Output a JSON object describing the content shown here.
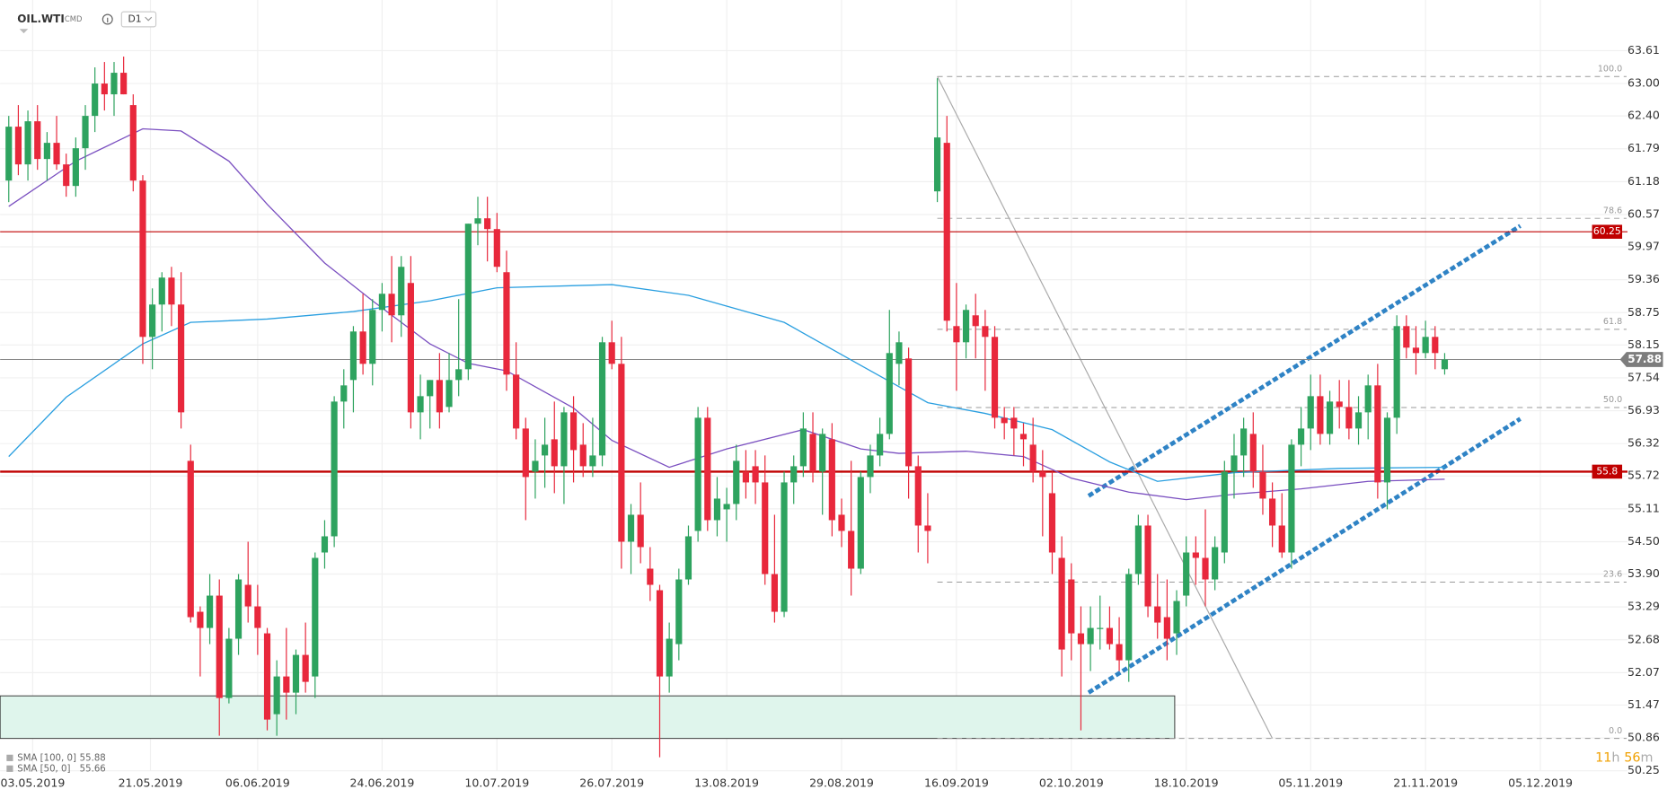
{
  "header": {
    "symbol": "OIL.WTI",
    "market": "CMD",
    "interval": "D1"
  },
  "chart_data": {
    "type": "candlestick",
    "xlim": [
      -0.9,
      169.1
    ],
    "ylim": [
      50.25,
      64.55
    ],
    "xticks": [
      {
        "value": 2.5,
        "label": "03.05.2019"
      },
      {
        "value": 14.8,
        "label": "21.05.2019"
      },
      {
        "value": 26,
        "label": "06.06.2019"
      },
      {
        "value": 39,
        "label": "24.06.2019"
      },
      {
        "value": 51,
        "label": "10.07.2019"
      },
      {
        "value": 63,
        "label": "26.07.2019"
      },
      {
        "value": 75,
        "label": "13.08.2019"
      },
      {
        "value": 87,
        "label": "29.08.2019"
      },
      {
        "value": 99,
        "label": "16.09.2019"
      },
      {
        "value": 111,
        "label": "02.10.2019"
      },
      {
        "value": 123,
        "label": "18.10.2019"
      },
      {
        "value": 136,
        "label": "05.11.2019"
      },
      {
        "value": 148,
        "label": "21.11.2019"
      },
      {
        "value": 160,
        "label": "05.12.2019"
      }
    ],
    "yticks": [
      63.61,
      {
        "value": 63,
        "label": "63.00"
      },
      {
        "value": 62.4,
        "label": "62.40"
      },
      61.79,
      61.18,
      60.57,
      59.97,
      59.36,
      58.75,
      58.15,
      57.54,
      56.93,
      56.32,
      55.72,
      55.11,
      {
        "value": 54.5,
        "label": "54.50"
      },
      {
        "value": 53.9,
        "label": "53.90"
      },
      53.29,
      52.68,
      52.07,
      51.47,
      50.86,
      50.25
    ],
    "grid": true,
    "up_color": "#2ea35f",
    "down_color": "#e8283c",
    "open": [
      61.2,
      62.2,
      61.5,
      62.3,
      61.6,
      61.9,
      61.5,
      61.1,
      61.8,
      62.4,
      63.0,
      62.8,
      63.2,
      62.6,
      61.2,
      58.3,
      58.9,
      59.4,
      58.9,
      56.0,
      53.2,
      52.9,
      53.5,
      51.6,
      52.7,
      53.7,
      53.3,
      52.8,
      51.3,
      52.0,
      51.7,
      52.4,
      52.0,
      54.3,
      54.6,
      57.1,
      57.5,
      58.4,
      57.8,
      58.8,
      59.1,
      58.7,
      59.3,
      56.9,
      57.2,
      57.5,
      57.0,
      57.5,
      57.7,
      60.4,
      60.5,
      60.3,
      59.5,
      57.6,
      56.6,
      55.8,
      56.1,
      56.4,
      55.9,
      56.9,
      56.3,
      55.9,
      56.1,
      58.2,
      57.8,
      54.5,
      55.0,
      54.0,
      53.6,
      52.0,
      52.6,
      53.8,
      54.7,
      56.8,
      54.9,
      55.1,
      55.2,
      55.8,
      55.9,
      55.6,
      53.9,
      53.2,
      55.6,
      55.9,
      56.5,
      55.8,
      56.4,
      55.0,
      54.7,
      54.0,
      55.7,
      56.1,
      56.5,
      57.8,
      57.9,
      55.9,
      54.8,
      61.0,
      61.9,
      58.5,
      58.2,
      58.7,
      58.5,
      58.3,
      56.8,
      56.8,
      56.5,
      56.3,
      55.8,
      55.4,
      54.2,
      53.8,
      52.8,
      52.6,
      52.9,
      52.9,
      52.6,
      52.3,
      53.9,
      54.8,
      53.3,
      53.1,
      52.8,
      53.5,
      54.3,
      54.2,
      53.8,
      54.3,
      55.8,
      56.1,
      56.5,
      55.8,
      55.3,
      54.8,
      54.3,
      56.3,
      56.6,
      57.2,
      56.5,
      57.1,
      57.0,
      56.6,
      56.9,
      57.4,
      55.6,
      56.8,
      58.5,
      58.1,
      58.0,
      58.3,
      57.7
    ],
    "high": [
      62.4,
      62.6,
      62.5,
      62.6,
      62.1,
      62.4,
      61.7,
      62.0,
      62.6,
      63.3,
      63.4,
      63.4,
      63.5,
      62.8,
      61.3,
      59.2,
      59.5,
      59.6,
      59.5,
      56.3,
      53.3,
      53.9,
      53.8,
      52.9,
      53.9,
      54.5,
      53.7,
      52.9,
      52.3,
      52.9,
      52.5,
      53.0,
      54.3,
      54.9,
      57.2,
      57.7,
      58.5,
      59.1,
      59.0,
      59.3,
      59.8,
      59.8,
      59.8,
      57.6,
      57.5,
      58.0,
      58.0,
      59.0,
      60.4,
      60.9,
      60.9,
      60.6,
      59.9,
      58.2,
      56.8,
      56.4,
      56.8,
      57.1,
      57.0,
      57.2,
      56.7,
      56.8,
      58.3,
      58.6,
      58.3,
      55.2,
      55.6,
      54.4,
      53.7,
      53.0,
      54.0,
      54.8,
      57.0,
      57.0,
      55.7,
      55.5,
      56.3,
      56.2,
      56.2,
      56.1,
      55.0,
      55.8,
      56.1,
      56.9,
      56.9,
      56.6,
      56.7,
      55.3,
      56.0,
      55.8,
      56.3,
      56.8,
      58.8,
      58.4,
      58.1,
      56.1,
      55.4,
      63.1,
      62.4,
      59.3,
      58.9,
      59.1,
      58.8,
      58.5,
      57.0,
      57.0,
      56.7,
      56.8,
      56.2,
      55.8,
      54.6,
      54.1,
      53.3,
      53.3,
      53.5,
      53.3,
      53.1,
      54.0,
      55.0,
      55.0,
      53.9,
      53.8,
      53.6,
      54.6,
      54.6,
      55.1,
      54.6,
      56.0,
      56.5,
      56.8,
      56.9,
      56.3,
      55.6,
      55.4,
      56.4,
      57.0,
      57.6,
      57.6,
      57.3,
      57.5,
      57.5,
      57.2,
      57.6,
      57.8,
      56.9,
      58.7,
      58.7,
      58.5,
      58.6,
      58.5,
      58.0
    ],
    "low": [
      60.8,
      61.3,
      61.2,
      61.4,
      61.2,
      61.4,
      60.9,
      60.9,
      61.4,
      62.1,
      62.5,
      62.4,
      62.8,
      61.0,
      57.8,
      57.7,
      58.4,
      58.5,
      56.6,
      53.0,
      52.0,
      52.6,
      50.9,
      51.5,
      52.4,
      53.0,
      52.4,
      51.0,
      50.9,
      51.2,
      51.3,
      51.7,
      51.6,
      54.0,
      54.4,
      56.6,
      56.9,
      57.6,
      57.4,
      58.4,
      58.2,
      58.3,
      56.6,
      56.4,
      56.6,
      56.6,
      56.9,
      57.2,
      57.5,
      60.0,
      59.7,
      59.5,
      57.3,
      56.4,
      54.9,
      55.3,
      55.5,
      55.4,
      55.2,
      55.6,
      55.7,
      55.7,
      55.9,
      57.7,
      54.0,
      53.9,
      54.1,
      53.4,
      50.5,
      51.7,
      52.3,
      53.7,
      54.5,
      54.7,
      54.6,
      54.5,
      54.9,
      55.3,
      55.2,
      53.7,
      53.0,
      53.1,
      55.2,
      55.7,
      55.6,
      55.0,
      54.6,
      54.4,
      53.5,
      53.9,
      55.4,
      55.9,
      56.4,
      57.4,
      55.3,
      54.3,
      54.1,
      60.8,
      58.4,
      57.3,
      57.9,
      57.9,
      57.3,
      56.6,
      56.4,
      56.1,
      55.9,
      55.6,
      54.6,
      53.9,
      52.0,
      52.3,
      51.0,
      52.1,
      52.5,
      52.5,
      52.1,
      51.9,
      53.7,
      53.1,
      52.7,
      52.3,
      52.4,
      53.3,
      53.7,
      53.3,
      53.6,
      54.1,
      55.3,
      55.7,
      55.5,
      55.0,
      54.4,
      54.2,
      54.0,
      55.9,
      56.2,
      56.3,
      56.3,
      56.6,
      56.4,
      56.3,
      56.4,
      55.3,
      55.1,
      56.5,
      57.9,
      57.6,
      57.9,
      57.7,
      57.6
    ],
    "close": [
      62.2,
      61.5,
      62.3,
      61.6,
      61.9,
      61.5,
      61.1,
      61.8,
      62.4,
      63.0,
      62.8,
      63.2,
      62.8,
      61.2,
      58.3,
      58.9,
      59.4,
      58.9,
      56.9,
      53.1,
      52.9,
      53.5,
      51.6,
      52.7,
      53.8,
      53.3,
      52.9,
      51.2,
      52.0,
      51.7,
      52.4,
      51.9,
      54.2,
      54.6,
      57.1,
      57.4,
      58.4,
      57.8,
      58.8,
      59.1,
      58.7,
      59.6,
      56.9,
      57.2,
      57.5,
      56.9,
      57.5,
      57.7,
      60.4,
      60.5,
      60.3,
      59.6,
      57.6,
      56.6,
      55.7,
      56.0,
      56.3,
      55.9,
      56.9,
      56.2,
      55.9,
      56.1,
      58.2,
      57.8,
      54.5,
      55.0,
      54.4,
      53.7,
      52.0,
      52.7,
      53.8,
      54.6,
      56.8,
      54.9,
      55.3,
      55.2,
      56.0,
      55.6,
      55.6,
      53.9,
      53.2,
      55.6,
      55.9,
      56.6,
      55.8,
      56.5,
      54.9,
      54.7,
      54.0,
      55.7,
      56.1,
      56.5,
      58.0,
      58.2,
      55.9,
      54.8,
      54.7,
      62.0,
      58.6,
      58.2,
      58.8,
      58.5,
      58.3,
      56.8,
      56.7,
      56.6,
      56.4,
      55.8,
      55.7,
      54.3,
      52.5,
      52.8,
      52.6,
      52.9,
      52.9,
      52.6,
      52.3,
      53.9,
      54.8,
      53.3,
      53.0,
      52.7,
      53.4,
      54.3,
      54.2,
      53.8,
      54.4,
      55.8,
      56.1,
      56.6,
      55.8,
      55.3,
      54.8,
      54.3,
      56.3,
      56.6,
      57.2,
      56.5,
      57.1,
      57.0,
      56.6,
      56.9,
      57.4,
      55.6,
      56.8,
      58.5,
      58.1,
      58.0,
      58.3,
      58.0,
      57.88
    ],
    "sma": [
      {
        "name": "SMA [100, 0]",
        "last": 55.88,
        "color": "#2a9fe0",
        "x": [
          0,
          6,
          14,
          19,
          27,
          36,
          44,
          51,
          63,
          71,
          81,
          89,
          96,
          102,
          109,
          115,
          120,
          128,
          139,
          150
        ],
        "values": [
          56.08,
          57.18,
          58.17,
          58.57,
          58.63,
          58.77,
          58.97,
          59.21,
          59.27,
          59.07,
          58.57,
          57.77,
          57.08,
          56.88,
          56.58,
          55.98,
          55.62,
          55.78,
          55.86,
          55.88
        ]
      },
      {
        "name": "SMA [50, 0]",
        "last": 55.66,
        "color": "#7a4fc0",
        "x": [
          0,
          7,
          14,
          18,
          23,
          27,
          33,
          38,
          44,
          48,
          52,
          59,
          63,
          69,
          75,
          83,
          89,
          93,
          100,
          106,
          111,
          117,
          123,
          128,
          135,
          142,
          150
        ],
        "values": [
          60.72,
          61.56,
          62.16,
          62.12,
          61.56,
          60.76,
          59.67,
          58.97,
          58.17,
          57.81,
          57.67,
          56.98,
          56.38,
          55.88,
          56.22,
          56.58,
          56.22,
          56.14,
          56.18,
          56.08,
          55.68,
          55.42,
          55.28,
          55.38,
          55.48,
          55.62,
          55.66
        ]
      }
    ],
    "levels": [
      {
        "value": 60.25,
        "color": "#c00000"
      },
      {
        "value": 55.8,
        "color": "#c00000"
      }
    ],
    "last_price": 57.88,
    "fibonacci": {
      "x": [
        97,
        169
      ],
      "trend_x": [
        97,
        132
      ],
      "levels": [
        {
          "label": "100.0",
          "value": 63.13
        },
        {
          "label": "78.6",
          "value": 60.5
        },
        {
          "label": "61.8",
          "value": 58.44
        },
        {
          "label": "50.0",
          "value": 56.99
        },
        {
          "label": "23.6",
          "value": 53.75
        },
        {
          "label": "0.0",
          "value": 50.85
        }
      ]
    },
    "channel": {
      "x": [
        112.8,
        157.9
      ],
      "upper": [
        55.35,
        60.36
      ],
      "lower": [
        51.7,
        56.78
      ]
    },
    "zone": {
      "x": [
        -0.9,
        121.8
      ],
      "values": [
        51.64,
        50.85
      ]
    },
    "countdown": [
      "11",
      "h",
      "56",
      "m"
    ]
  }
}
